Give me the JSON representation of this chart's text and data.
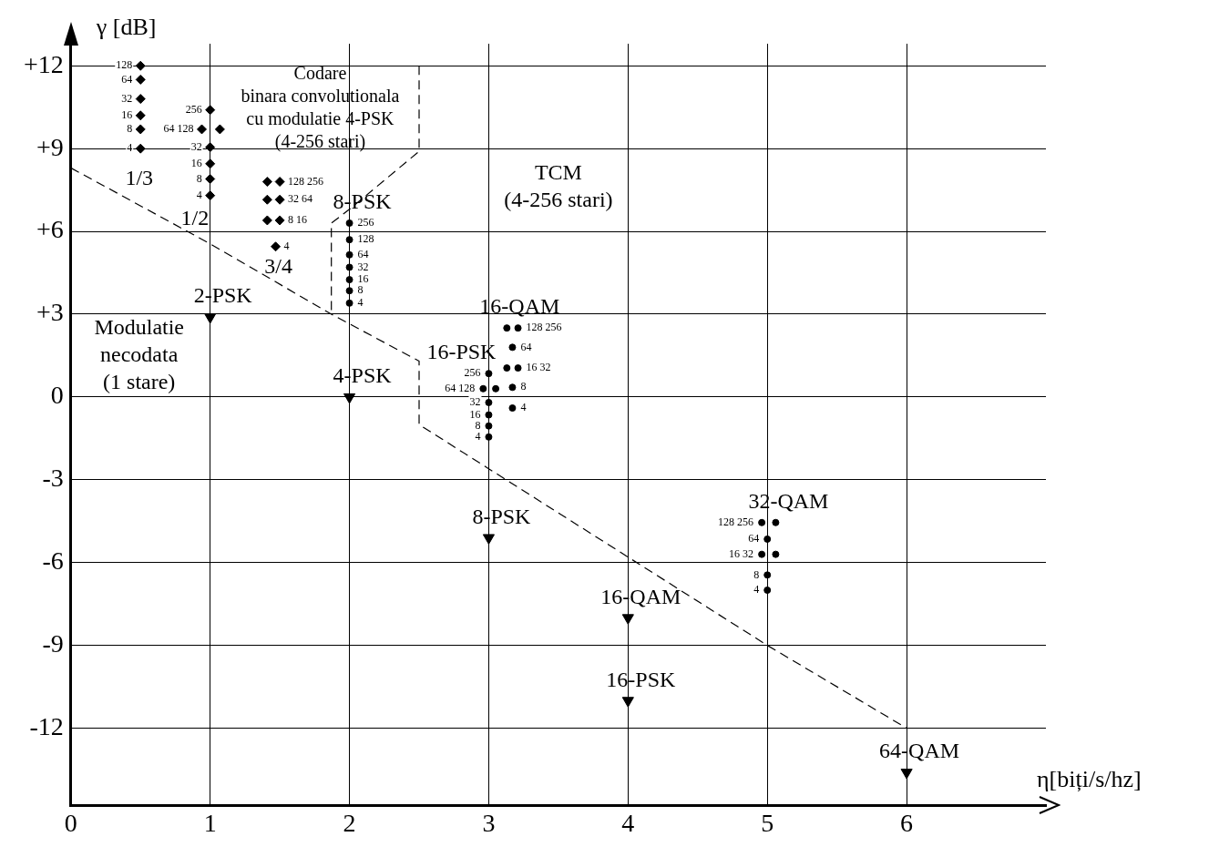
{
  "chart_data": {
    "type": "scatter",
    "xlabel": "η[biți/s/hz]",
    "ylabel": "γ [dB]",
    "xlim": [
      0,
      7
    ],
    "ylim": [
      -14.8,
      12.8
    ],
    "xticks": [
      0,
      1,
      2,
      3,
      4,
      5,
      6
    ],
    "yticks": [
      {
        "value": 12,
        "label": "+12"
      },
      {
        "value": 9,
        "label": "+9"
      },
      {
        "value": 6,
        "label": "+6"
      },
      {
        "value": 3,
        "label": "+3"
      },
      0,
      -3,
      -6,
      -9,
      -12
    ],
    "grid": true,
    "legend": false,
    "series": [
      {
        "marker": "triangle",
        "color": "#000000",
        "x": [
          1,
          2,
          3,
          4,
          4,
          6
        ],
        "values": [
          2.9,
          0,
          -5.1,
          -8.0,
          -11.0,
          -13.6
        ]
      },
      {
        "marker": "diamond",
        "color": "#000000",
        "x": [
          0.5,
          0.5,
          0.5,
          0.5,
          0.5,
          0.5
        ],
        "values": [
          12.0,
          11.5,
          10.8,
          10.2,
          9.7,
          9.0
        ]
      },
      {
        "marker": "diamond",
        "color": "#000000",
        "x": [
          1,
          0.94,
          1.07,
          1,
          1,
          1,
          1
        ],
        "values": [
          10.4,
          9.7,
          9.7,
          9.05,
          8.45,
          7.9,
          7.3
        ]
      },
      {
        "marker": "diamond",
        "color": "#000000",
        "x": [
          1.41,
          1.5,
          1.41,
          1.5,
          1.41,
          1.5,
          1.47
        ],
        "values": [
          7.8,
          7.8,
          7.15,
          7.15,
          6.4,
          6.4,
          5.45
        ]
      },
      {
        "marker": "circle",
        "color": "#000000",
        "x": [
          2,
          2,
          2,
          2,
          2,
          2,
          2
        ],
        "values": [
          6.3,
          5.7,
          5.15,
          4.7,
          4.25,
          3.85,
          3.4
        ]
      },
      {
        "marker": "circle",
        "color": "#000000",
        "x": [
          3.13,
          3.21,
          3.17,
          3.13,
          3.21,
          3.17,
          3.17
        ],
        "values": [
          2.5,
          2.5,
          1.8,
          1.05,
          1.05,
          0.35,
          -0.4
        ]
      },
      {
        "marker": "circle",
        "color": "#000000",
        "x": [
          3,
          2.96,
          3.05,
          3,
          3,
          3,
          3
        ],
        "values": [
          0.85,
          0.3,
          0.3,
          -0.2,
          -0.65,
          -1.05,
          -1.45
        ]
      },
      {
        "marker": "circle",
        "color": "#000000",
        "x": [
          4.96,
          5.06,
          5,
          4.96,
          5.06,
          5,
          5
        ],
        "values": [
          -4.55,
          -4.55,
          -5.15,
          -5.7,
          -5.7,
          -6.45,
          -7.0
        ]
      },
      {
        "type": "line",
        "marker": "none",
        "line_style": "dashed",
        "color": "#000000",
        "x": [
          0,
          1,
          1.87,
          2,
          2.5,
          2.5,
          3,
          4,
          5,
          6
        ],
        "values": [
          8.3,
          5.55,
          3.0,
          2.65,
          1.3,
          -1.0,
          -2.6,
          -5.8,
          -9,
          -12
        ]
      },
      {
        "type": "line",
        "marker": "none",
        "line_style": "dashed",
        "color": "#000000",
        "x": [
          2.5,
          2.5,
          2.0,
          1.87,
          1.87
        ],
        "values": [
          12,
          8.9,
          6.8,
          6.3,
          3.0
        ]
      }
    ],
    "annotations": [
      "Codare\nbinara convolutionala\ncu modulatie 4-PSK\n(4-256 stari)",
      "TCM\n(4-256 stari)",
      "Modulatie\nnecodata\n(1 stare)",
      "1/3",
      "1/2",
      "3/4",
      {
        "text": "2-PSK",
        "x": 1,
        "y": 2.9
      },
      {
        "text": "4-PSK",
        "x": 2,
        "y": 0
      },
      {
        "text": "8-PSK",
        "x": 3,
        "y": -5.1
      },
      {
        "text": "16-QAM",
        "x": 4,
        "y": -8.0
      },
      {
        "text": "16-PSK",
        "x": 4,
        "y": -11.0
      },
      {
        "text": "64-QAM",
        "x": 6,
        "y": -13.6
      },
      {
        "text": "8-PSK",
        "x": 2,
        "y": 6.3
      },
      {
        "text": "16-QAM",
        "x": 3.13,
        "y": 2.5
      },
      {
        "text": "16-PSK",
        "x": 3,
        "y": 0.85
      },
      {
        "text": "32-QAM",
        "x": 5.06,
        "y": -4.55
      },
      {
        "text": "128",
        "x": 0.5,
        "y": 12.0
      },
      {
        "text": "64",
        "x": 0.5,
        "y": 11.5
      },
      {
        "text": "32",
        "x": 0.5,
        "y": 10.8
      },
      {
        "text": "16",
        "x": 0.5,
        "y": 10.2
      },
      {
        "text": "8",
        "x": 0.5,
        "y": 9.7
      },
      {
        "text": "4",
        "x": 0.5,
        "y": 9.0
      },
      {
        "text": "256",
        "x": 1,
        "y": 10.4
      },
      {
        "text": "64 128",
        "x": 0.94,
        "y": 9.7
      },
      {
        "text": "32",
        "x": 1,
        "y": 9.05
      },
      {
        "text": "16",
        "x": 1,
        "y": 8.45
      },
      {
        "text": "8",
        "x": 1,
        "y": 7.9
      },
      {
        "text": "4",
        "x": 1,
        "y": 7.3
      },
      {
        "text": "128 256",
        "x": 1.5,
        "y": 7.8
      },
      {
        "text": "32 64",
        "x": 1.5,
        "y": 7.15
      },
      {
        "text": "8 16",
        "x": 1.5,
        "y": 6.4
      },
      {
        "text": "4",
        "x": 1.47,
        "y": 5.45
      },
      {
        "text": "256",
        "x": 2,
        "y": 6.3
      },
      {
        "text": "128",
        "x": 2,
        "y": 5.7
      },
      {
        "text": "64",
        "x": 2,
        "y": 5.15
      },
      {
        "text": "32",
        "x": 2,
        "y": 4.7
      },
      {
        "text": "16",
        "x": 2,
        "y": 4.25
      },
      {
        "text": "8",
        "x": 2,
        "y": 3.85
      },
      {
        "text": "4",
        "x": 2,
        "y": 3.4
      },
      {
        "text": "128 256",
        "x": 3.21,
        "y": 2.5
      },
      {
        "text": "64",
        "x": 3.17,
        "y": 1.8
      },
      {
        "text": "16 32",
        "x": 3.21,
        "y": 1.05
      },
      {
        "text": "8",
        "x": 3.17,
        "y": 0.35
      },
      {
        "text": "4",
        "x": 3.17,
        "y": -0.4
      },
      {
        "text": "256",
        "x": 3,
        "y": 0.85
      },
      {
        "text": "64 128",
        "x": 2.96,
        "y": 0.3
      },
      {
        "text": "32",
        "x": 3,
        "y": -0.2
      },
      {
        "text": "16",
        "x": 3,
        "y": -0.65
      },
      {
        "text": "8",
        "x": 3,
        "y": -1.05
      },
      {
        "text": "4",
        "x": 3,
        "y": -1.45
      },
      {
        "text": "128 256",
        "x": 4.96,
        "y": -4.55
      },
      {
        "text": "64",
        "x": 5,
        "y": -5.15
      },
      {
        "text": "16 32",
        "x": 4.96,
        "y": -5.7
      },
      {
        "text": "8",
        "x": 5,
        "y": -6.45
      },
      {
        "text": "4",
        "x": 5,
        "y": -7.0
      }
    ]
  }
}
